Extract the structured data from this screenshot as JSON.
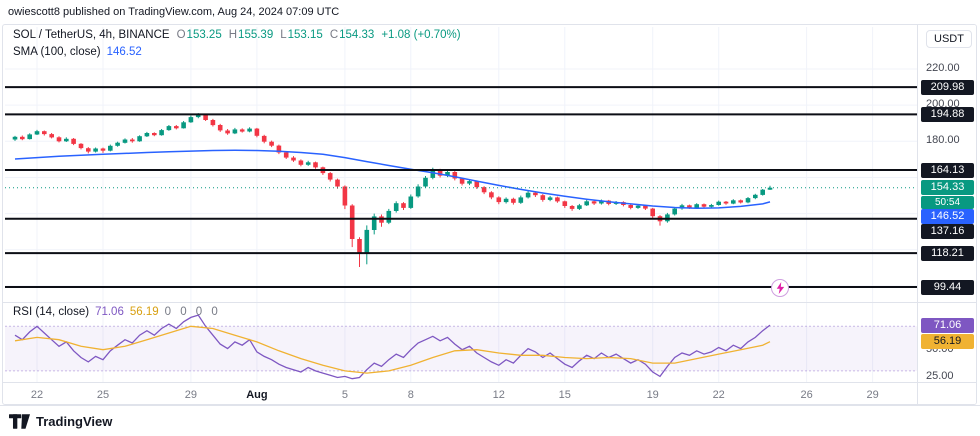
{
  "attribution": "owiescott8 published on TradingView.com, Aug 24, 2024 07:09 UTC",
  "header": {
    "symbol": "SOL / TetherUS, 4h, BINANCE",
    "o_label": "O",
    "o": "153.25",
    "h_label": "H",
    "h": "155.39",
    "l_label": "L",
    "l": "153.15",
    "c_label": "C",
    "c": "154.33",
    "change": "+1.08 (+0.70%)",
    "sma_label": "SMA (100, close)",
    "sma_value": "146.52",
    "rsi_label": "RSI (14, close)",
    "rsi_value": "71.06",
    "rsi_ma_value": "56.19",
    "rsi_extra": "0 0 0 0"
  },
  "price_scale": {
    "currency": "USDT",
    "ticks": [
      {
        "label": "220.00",
        "value": 220
      },
      {
        "label": "200.00",
        "value": 200
      },
      {
        "label": "180.00",
        "value": 180
      }
    ],
    "level_badges": [
      {
        "label": "209.98",
        "value": 209.98
      },
      {
        "label": "194.88",
        "value": 194.88
      },
      {
        "label": "164.13",
        "value": 164.13
      },
      {
        "label": "137.16",
        "value": 137.16
      },
      {
        "label": "118.21",
        "value": 118.21
      },
      {
        "label": "99.44",
        "value": 99.44
      }
    ],
    "last_price": {
      "label": "154.33",
      "value": 154.33
    },
    "countdown": {
      "label": "50:54"
    },
    "sma_badge": {
      "label": "146.52",
      "value": 146.52
    }
  },
  "rsi_scale": {
    "rsi_badge": {
      "label": "71.06",
      "value": 71.06
    },
    "ma_badge": {
      "label": "56.19",
      "value": 56.19
    },
    "ticks": [
      {
        "label": "50.00",
        "value": 50
      },
      {
        "label": "25.00",
        "value": 25
      }
    ]
  },
  "time_axis": [
    {
      "label": "22",
      "index": 3
    },
    {
      "label": "25",
      "index": 12
    },
    {
      "label": "29",
      "index": 24
    },
    {
      "label": "Aug",
      "index": 33,
      "bold": true
    },
    {
      "label": "5",
      "index": 45
    },
    {
      "label": "8",
      "index": 54
    },
    {
      "label": "12",
      "index": 66
    },
    {
      "label": "15",
      "index": 75
    },
    {
      "label": "19",
      "index": 87
    },
    {
      "label": "22",
      "index": 96
    },
    {
      "label": "26",
      "index": 108
    },
    {
      "label": "29",
      "index": 117
    }
  ],
  "footer": {
    "brand": "TradingView"
  },
  "colors": {
    "up": "#089981",
    "down": "#f23645",
    "sma": "#2962ff",
    "rsi": "#7e57c2",
    "rsi_ma": "#f0b232",
    "level": "#0c0e15",
    "badge_dark": "#131722",
    "alert_bolt": "#e01fa8",
    "alert_ring": "#cf9fe0"
  },
  "chart_data": [
    {
      "type": "candlestick",
      "title": "SOL / TetherUS, 4h, BINANCE",
      "current": {
        "open": 153.25,
        "high": 155.39,
        "low": 153.15,
        "close": 154.33,
        "change": 1.08,
        "change_pct": 0.7
      },
      "last_price": 154.33,
      "horizontal_levels": [
        209.98,
        194.88,
        164.13,
        137.16,
        118.21,
        99.44
      ],
      "y_axis": {
        "visible_min": 91.7,
        "visible_max": 243.2,
        "ticks": [
          220,
          200,
          180
        ],
        "grid": [
          220,
          200,
          180,
          160,
          140,
          120,
          100
        ]
      },
      "sma100": {
        "period": 100,
        "current": 146.52,
        "step": 3,
        "values": [
          170.2,
          171.0,
          171.7,
          172.3,
          172.8,
          173.3,
          173.8,
          174.2,
          174.6,
          174.9,
          175.0,
          174.9,
          174.5,
          173.8,
          172.8,
          171.0,
          168.8,
          166.6,
          164.6,
          162.6,
          160.4,
          158.0,
          155.6,
          153.4,
          151.4,
          149.6,
          148.0,
          146.6,
          145.4,
          144.2,
          143.4,
          143.0,
          143.2,
          144.0,
          145.4
        ]
      },
      "candles": [
        [
          181.0,
          183.0,
          180.2,
          182.5
        ],
        [
          182.5,
          183.2,
          180.6,
          181.2
        ],
        [
          181.2,
          184.4,
          181.0,
          183.8
        ],
        [
          183.8,
          186.3,
          183.5,
          185.6
        ],
        [
          185.6,
          186.0,
          183.2,
          184.0
        ],
        [
          184.0,
          184.6,
          181.6,
          182.2
        ],
        [
          182.2,
          182.8,
          179.4,
          180.0
        ],
        [
          180.0,
          182.2,
          179.6,
          181.4
        ],
        [
          181.4,
          181.8,
          177.9,
          178.6
        ],
        [
          178.6,
          179.0,
          175.5,
          176.2
        ],
        [
          176.2,
          176.8,
          173.3,
          174.3
        ],
        [
          174.3,
          176.6,
          173.8,
          176.0
        ],
        [
          176.0,
          176.5,
          173.6,
          174.8
        ],
        [
          174.8,
          178.2,
          174.4,
          177.5
        ],
        [
          177.5,
          179.8,
          177.0,
          179.2
        ],
        [
          179.2,
          181.6,
          178.8,
          181.0
        ],
        [
          181.0,
          181.8,
          179.2,
          180.0
        ],
        [
          180.0,
          183.3,
          179.7,
          182.8
        ],
        [
          182.8,
          185.2,
          182.4,
          184.6
        ],
        [
          184.6,
          185.0,
          182.8,
          183.4
        ],
        [
          183.4,
          186.8,
          183.1,
          186.2
        ],
        [
          186.2,
          189.0,
          185.8,
          188.4
        ],
        [
          188.4,
          189.0,
          186.6,
          187.2
        ],
        [
          187.2,
          191.2,
          187.0,
          190.5
        ],
        [
          190.5,
          194.2,
          190.2,
          193.4
        ],
        [
          193.4,
          195.6,
          192.8,
          195.0
        ],
        [
          195.0,
          195.4,
          191.2,
          191.8
        ],
        [
          191.8,
          192.4,
          188.2,
          189.0
        ],
        [
          189.0,
          189.6,
          185.2,
          186.0
        ],
        [
          186.0,
          186.8,
          183.6,
          184.4
        ],
        [
          184.4,
          187.4,
          184.0,
          186.6
        ],
        [
          186.6,
          187.2,
          184.8,
          185.4
        ],
        [
          185.4,
          187.8,
          185.0,
          187.0
        ],
        [
          187.0,
          187.4,
          182.2,
          183.0
        ],
        [
          183.0,
          183.6,
          178.9,
          179.8
        ],
        [
          179.8,
          180.4,
          176.8,
          177.6
        ],
        [
          177.6,
          178.2,
          172.9,
          173.8
        ],
        [
          173.8,
          174.4,
          170.2,
          171.0
        ],
        [
          171.0,
          171.8,
          168.6,
          169.4
        ],
        [
          169.4,
          170.0,
          166.2,
          167.0
        ],
        [
          167.0,
          169.2,
          166.4,
          168.4
        ],
        [
          168.4,
          168.8,
          164.8,
          165.6
        ],
        [
          165.6,
          166.0,
          161.4,
          162.4
        ],
        [
          162.4,
          163.0,
          157.8,
          158.8
        ],
        [
          158.8,
          159.4,
          153.8,
          155.0
        ],
        [
          155.0,
          155.6,
          142.5,
          144.5
        ],
        [
          144.5,
          145.2,
          121.5,
          126.0
        ],
        [
          126.0,
          127.0,
          110.5,
          118.5
        ],
        [
          118.5,
          133.5,
          112.0,
          131.0
        ],
        [
          131.0,
          140.0,
          128.5,
          138.5
        ],
        [
          138.5,
          139.5,
          132.8,
          135.0
        ],
        [
          135.0,
          142.6,
          134.2,
          141.5
        ],
        [
          141.5,
          146.8,
          140.6,
          145.8
        ],
        [
          145.8,
          146.4,
          142.0,
          143.2
        ],
        [
          143.2,
          150.6,
          142.6,
          149.5
        ],
        [
          149.5,
          156.2,
          148.8,
          155.0
        ],
        [
          155.0,
          160.8,
          154.2,
          159.8
        ],
        [
          159.8,
          165.4,
          159.0,
          163.6
        ],
        [
          163.6,
          164.8,
          160.0,
          161.0
        ],
        [
          161.0,
          164.6,
          160.2,
          163.0
        ],
        [
          163.0,
          163.6,
          158.4,
          159.4
        ],
        [
          159.4,
          160.0,
          155.6,
          156.6
        ],
        [
          156.6,
          158.8,
          155.8,
          158.0
        ],
        [
          158.0,
          158.4,
          153.6,
          154.6
        ],
        [
          154.6,
          155.2,
          150.8,
          151.8
        ],
        [
          151.8,
          152.4,
          148.0,
          149.0
        ],
        [
          149.0,
          149.6,
          145.2,
          146.4
        ],
        [
          146.4,
          149.0,
          145.6,
          148.2
        ],
        [
          148.2,
          148.8,
          145.0,
          146.0
        ],
        [
          146.0,
          150.0,
          145.4,
          149.0
        ],
        [
          149.0,
          152.6,
          148.4,
          151.6
        ],
        [
          151.6,
          152.2,
          149.2,
          150.2
        ],
        [
          150.2,
          150.8,
          146.6,
          147.6
        ],
        [
          147.6,
          149.8,
          146.9,
          149.0
        ],
        [
          149.0,
          149.4,
          146.0,
          146.8
        ],
        [
          146.8,
          147.2,
          143.2,
          144.2
        ],
        [
          144.2,
          144.8,
          141.6,
          142.6
        ],
        [
          142.6,
          145.4,
          142.0,
          144.6
        ],
        [
          144.6,
          147.6,
          144.2,
          146.8
        ],
        [
          146.8,
          147.4,
          144.8,
          145.6
        ],
        [
          145.6,
          147.8,
          145.0,
          147.2
        ],
        [
          147.2,
          147.6,
          144.6,
          145.4
        ],
        [
          145.4,
          147.0,
          144.8,
          146.4
        ],
        [
          146.4,
          146.8,
          144.0,
          144.8
        ],
        [
          144.8,
          145.2,
          142.4,
          143.2
        ],
        [
          143.2,
          145.0,
          142.6,
          144.4
        ],
        [
          144.4,
          144.8,
          142.0,
          142.8
        ],
        [
          142.8,
          143.2,
          137.0,
          138.6
        ],
        [
          138.6,
          139.2,
          133.4,
          135.8
        ],
        [
          135.8,
          140.4,
          135.0,
          139.6
        ],
        [
          139.6,
          143.6,
          139.0,
          142.8
        ],
        [
          142.8,
          145.4,
          142.2,
          144.6
        ],
        [
          144.6,
          145.0,
          142.6,
          143.4
        ],
        [
          143.4,
          145.8,
          142.8,
          145.2
        ],
        [
          145.2,
          145.6,
          143.0,
          143.8
        ],
        [
          143.8,
          145.4,
          143.2,
          144.8
        ],
        [
          144.8,
          147.2,
          144.4,
          146.6
        ],
        [
          146.6,
          147.0,
          144.9,
          145.6
        ],
        [
          145.6,
          148.0,
          145.2,
          147.4
        ],
        [
          147.4,
          147.8,
          145.6,
          146.2
        ],
        [
          146.2,
          149.2,
          145.8,
          148.6
        ],
        [
          148.6,
          151.0,
          148.0,
          150.4
        ],
        [
          150.4,
          153.6,
          150.0,
          153.25
        ],
        [
          153.25,
          155.39,
          153.15,
          154.33
        ]
      ]
    },
    {
      "type": "line",
      "name": "RSI (14, close)",
      "current": 71.06,
      "ma_current": 56.19,
      "band": [
        30,
        70
      ],
      "y_range": [
        20,
        90
      ],
      "ticks": [
        50,
        25
      ],
      "rsi": [
        62,
        58,
        65,
        70,
        64,
        58,
        52,
        56,
        48,
        42,
        38,
        43,
        40,
        48,
        53,
        58,
        55,
        62,
        66,
        62,
        68,
        72,
        68,
        74,
        78,
        80,
        70,
        62,
        54,
        50,
        56,
        53,
        58,
        47,
        43,
        40,
        36,
        33,
        31,
        29,
        33,
        30,
        28,
        26,
        24,
        25,
        23,
        24,
        31,
        37,
        34,
        40,
        45,
        42,
        49,
        55,
        58,
        61,
        57,
        60,
        54,
        49,
        52,
        46,
        42,
        38,
        35,
        40,
        37,
        44,
        50,
        47,
        42,
        46,
        41,
        36,
        33,
        39,
        44,
        41,
        46,
        42,
        45,
        41,
        37,
        40,
        36,
        29,
        25,
        34,
        42,
        46,
        44,
        48,
        45,
        47,
        51,
        48,
        53,
        50,
        56,
        60,
        66,
        71.06
      ],
      "ma": {
        "step": 3,
        "values": [
          57,
          60,
          58,
          52,
          49,
          52,
          58,
          64,
          70,
          68,
          62,
          56,
          48,
          41,
          35,
          30,
          28,
          30,
          35,
          42,
          48,
          49,
          46,
          44,
          44,
          42,
          41,
          42,
          41,
          37,
          37,
          41,
          45,
          49,
          53
        ]
      }
    }
  ]
}
